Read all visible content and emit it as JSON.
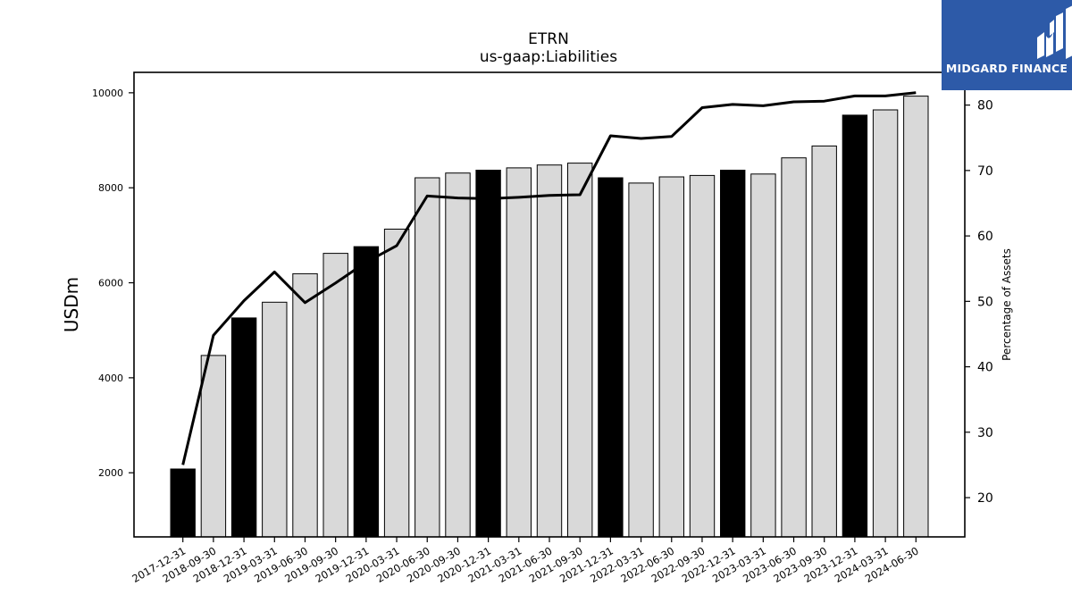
{
  "chart_data": {
    "type": "bar",
    "title": "ETRN",
    "subtitle": "us-gaap:Liabilities",
    "ylabel": "USDm",
    "y2label": "Percentage of Assets",
    "ylim": [
      650,
      10430
    ],
    "y2lim": [
      14,
      85
    ],
    "yticks": [
      2000,
      4000,
      6000,
      8000,
      10000
    ],
    "y2ticks": [
      20,
      30,
      40,
      50,
      60,
      70,
      80
    ],
    "categories": [
      "2017-12-31",
      "2018-09-30",
      "2018-12-31",
      "2019-03-31",
      "2019-06-30",
      "2019-09-30",
      "2019-12-31",
      "2020-03-31",
      "2020-06-30",
      "2020-09-30",
      "2020-12-31",
      "2021-03-31",
      "2021-06-30",
      "2021-09-30",
      "2021-12-31",
      "2022-03-31",
      "2022-06-30",
      "2022-09-30",
      "2022-12-31",
      "2023-03-31",
      "2023-06-30",
      "2023-09-30",
      "2023-12-31",
      "2024-03-31",
      "2024-06-30"
    ],
    "series": [
      {
        "type": "bar",
        "values": [
          2080,
          4470,
          5260,
          5590,
          6190,
          6620,
          6760,
          7130,
          8210,
          8310,
          8370,
          8420,
          8480,
          8520,
          8210,
          8100,
          8230,
          8260,
          8370,
          8290,
          8630,
          8880,
          9530,
          9640,
          9930
        ],
        "annual": [
          true,
          false,
          true,
          false,
          false,
          false,
          true,
          false,
          false,
          false,
          true,
          false,
          false,
          false,
          true,
          false,
          false,
          false,
          true,
          false,
          false,
          false,
          true,
          false,
          false
        ]
      },
      {
        "type": "line",
        "axis": "right",
        "values": [
          25.0,
          44.8,
          50.1,
          54.5,
          49.8,
          52.8,
          56.0,
          58.5,
          66.1,
          65.8,
          65.7,
          65.9,
          66.2,
          66.3,
          75.3,
          74.9,
          75.2,
          79.6,
          80.1,
          79.9,
          80.5,
          80.6,
          81.4,
          81.4,
          81.9
        ]
      }
    ],
    "colors": {
      "annual": "#000000",
      "quarterly": "#d9d9d9",
      "line": "#000000"
    },
    "grid": false
  },
  "logo": {
    "text": "MIDGARD FINANCE",
    "background": "#2d5aa8",
    "icon": "midgard-logo-icon"
  }
}
